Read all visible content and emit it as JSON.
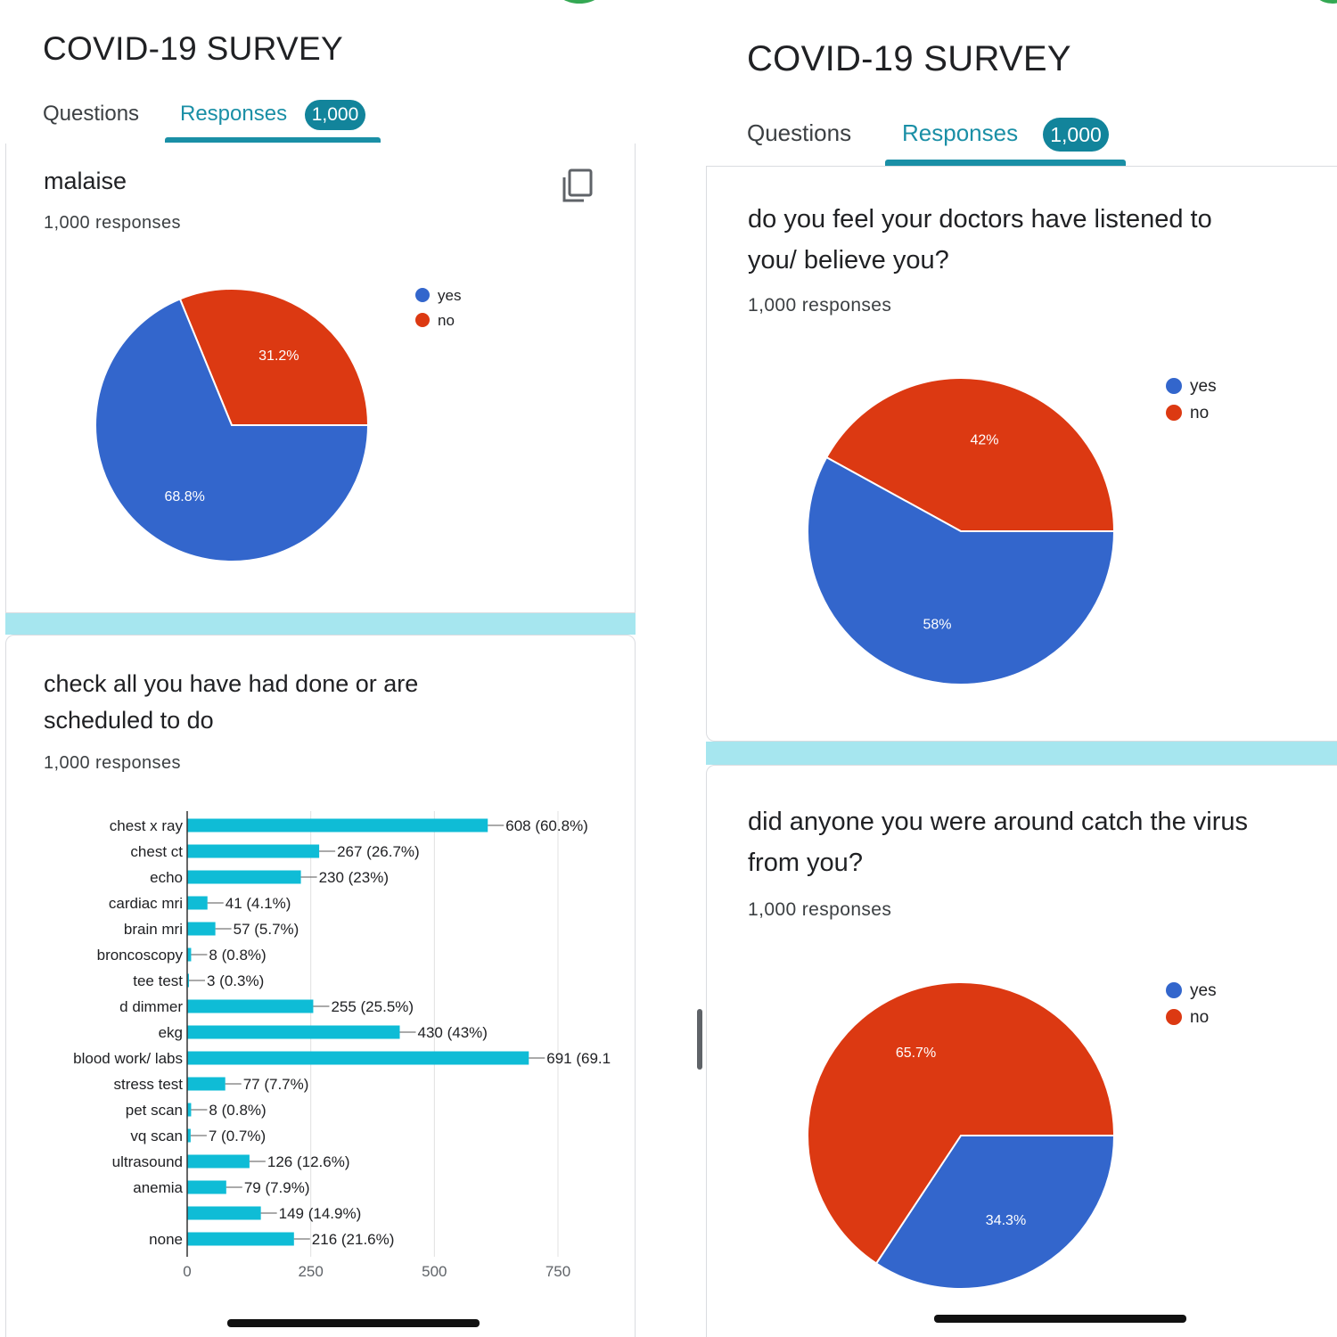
{
  "left": {
    "app_title": "COVID-19 SURVEY",
    "tabs": {
      "questions": "Questions",
      "responses": "Responses",
      "responses_badge": "1,000"
    },
    "q1": {
      "title": "malaise",
      "responses": "1,000 responses",
      "copy_icon": "copy-icon"
    },
    "q2": {
      "title_line1": "check all you have had done or are",
      "title_line2": "scheduled to do",
      "responses": "1,000 responses"
    }
  },
  "right": {
    "app_title": "COVID-19 SURVEY",
    "tabs": {
      "questions": "Questions",
      "responses": "Responses",
      "responses_badge": "1,000"
    },
    "q1": {
      "title_line1": "do you feel your doctors have listened to",
      "title_line2": "you/ believe you?",
      "responses": "1,000 responses"
    },
    "q2": {
      "title_line1": "did anyone you were around catch the virus",
      "title_line2": "from you?",
      "responses": "1,000 responses"
    }
  },
  "colors": {
    "yes": "#3366cc",
    "no": "#dc3912",
    "bar": "#0fbcd6",
    "accent": "#1a8fa6",
    "band": "#a6e6ef"
  },
  "chart_data": [
    {
      "type": "pie",
      "title": "malaise",
      "slices": [
        {
          "label": "yes",
          "value": 68.8,
          "text": "68.8%"
        },
        {
          "label": "no",
          "value": 31.2,
          "text": "31.2%"
        }
      ]
    },
    {
      "type": "bar",
      "orientation": "horizontal",
      "title": "check all you have had done or are scheduled to do",
      "xlim": [
        0,
        750
      ],
      "xticks": [
        0,
        250,
        500,
        750
      ],
      "grid": true,
      "bars": [
        {
          "category": "chest x ray",
          "value": 608,
          "label": "608 (60.8%)"
        },
        {
          "category": "chest ct",
          "value": 267,
          "label": "267 (26.7%)"
        },
        {
          "category": "echo",
          "value": 230,
          "label": "230 (23%)"
        },
        {
          "category": "cardiac mri",
          "value": 41,
          "label": "41 (4.1%)"
        },
        {
          "category": "brain mri",
          "value": 57,
          "label": "57 (5.7%)"
        },
        {
          "category": "broncoscopy",
          "value": 8,
          "label": "8 (0.8%)"
        },
        {
          "category": "tee test",
          "value": 3,
          "label": "3 (0.3%)"
        },
        {
          "category": "d dimmer",
          "value": 255,
          "label": "255 (25.5%)"
        },
        {
          "category": "ekg",
          "value": 430,
          "label": "430 (43%)"
        },
        {
          "category": "blood work/ labs",
          "value": 691,
          "label": "691 (69.1"
        },
        {
          "category": "stress test",
          "value": 77,
          "label": "77 (7.7%)"
        },
        {
          "category": "pet scan",
          "value": 8,
          "label": "8 (0.8%)"
        },
        {
          "category": "vq scan",
          "value": 7,
          "label": "7 (0.7%)"
        },
        {
          "category": "ultrasound",
          "value": 126,
          "label": "126 (12.6%)"
        },
        {
          "category": "anemia",
          "value": 79,
          "label": "79 (7.9%)"
        },
        {
          "category": "",
          "value": 149,
          "label": "149 (14.9%)"
        },
        {
          "category": "none",
          "value": 216,
          "label": "216 (21.6%)"
        }
      ]
    },
    {
      "type": "pie",
      "title": "do you feel your doctors have listened to you/ believe you?",
      "slices": [
        {
          "label": "yes",
          "value": 58,
          "text": "58%"
        },
        {
          "label": "no",
          "value": 42,
          "text": "42%"
        }
      ]
    },
    {
      "type": "pie",
      "title": "did anyone you were around catch the virus from you?",
      "slices": [
        {
          "label": "yes",
          "value": 34.3,
          "text": "34.3%"
        },
        {
          "label": "no",
          "value": 65.7,
          "text": "65.7%"
        }
      ]
    }
  ]
}
